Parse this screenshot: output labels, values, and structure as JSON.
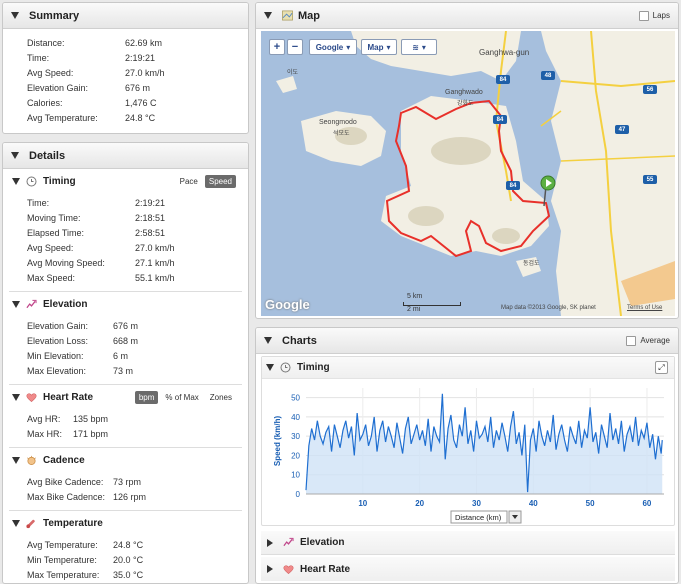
{
  "summary": {
    "title": "Summary",
    "rows": [
      {
        "label": "Distance:",
        "value": "62.69 km"
      },
      {
        "label": "Time:",
        "value": "2:19:21"
      },
      {
        "label": "Avg Speed:",
        "value": "27.0 km/h"
      },
      {
        "label": "Elevation Gain:",
        "value": "676 m"
      },
      {
        "label": "Calories:",
        "value": "1,476 C"
      },
      {
        "label": "Avg Temperature:",
        "value": "24.8 °C"
      }
    ]
  },
  "details": {
    "title": "Details",
    "timing": {
      "title": "Timing",
      "toggle": [
        "Pace",
        "Speed"
      ],
      "rows": [
        {
          "label": "Time:",
          "value": "2:19:21"
        },
        {
          "label": "Moving Time:",
          "value": "2:18:51"
        },
        {
          "label": "Elapsed Time:",
          "value": "2:58:51"
        },
        {
          "label": "Avg Speed:",
          "value": "27.0 km/h"
        },
        {
          "label": "Avg Moving Speed:",
          "value": "27.1 km/h"
        },
        {
          "label": "Max Speed:",
          "value": "55.1 km/h"
        }
      ]
    },
    "elevation": {
      "title": "Elevation",
      "rows": [
        {
          "label": "Elevation Gain:",
          "value": "676 m"
        },
        {
          "label": "Elevation Loss:",
          "value": "668 m"
        },
        {
          "label": "Min Elevation:",
          "value": "6 m"
        },
        {
          "label": "Max Elevation:",
          "value": "73 m"
        }
      ]
    },
    "heart_rate": {
      "title": "Heart Rate",
      "toggle": [
        "bpm",
        "% of Max",
        "Zones"
      ],
      "rows": [
        {
          "label": "Avg HR:",
          "value": "135 bpm"
        },
        {
          "label": "Max HR:",
          "value": "171 bpm"
        }
      ]
    },
    "cadence": {
      "title": "Cadence",
      "rows": [
        {
          "label": "Avg Bike Cadence:",
          "value": "73 rpm"
        },
        {
          "label": "Max Bike Cadence:",
          "value": "126 rpm"
        }
      ]
    },
    "temperature": {
      "title": "Temperature",
      "rows": [
        {
          "label": "Avg Temperature:",
          "value": "24.8 °C"
        },
        {
          "label": "Min Temperature:",
          "value": "20.0 °C"
        },
        {
          "label": "Max Temperature:",
          "value": "35.0 °C"
        }
      ]
    }
  },
  "map": {
    "title": "Map",
    "laps_label": "Laps",
    "zoom_in": "+",
    "zoom_out": "−",
    "type_google": "Google",
    "type_map": "Map",
    "labels": {
      "ganghwa_gun": "Ganghwa-gun",
      "ganghwado": "Ganghwado",
      "seongmodo": "Seongmodo",
      "seongmodo_kr": "석모도",
      "ganghwado_kr": "강화도",
      "dongmakdo_kr": "동검도",
      "imido_kr": "이도"
    },
    "shields": [
      "48",
      "84",
      "84",
      "84",
      "56",
      "47",
      "55"
    ],
    "scale_km": "5 km",
    "scale_mi": "2 mi",
    "attribution": "Map data ©2013 Google, SK planet",
    "terms": "Terms of Use",
    "google_logo": "Google",
    "colors": {
      "route": "#e8302a",
      "water": "#a6bfdd",
      "land": "#f2efe4"
    }
  },
  "charts": {
    "title": "Charts",
    "average_label": "Average",
    "timing_title": "Timing",
    "elevation_title": "Elevation",
    "heart_rate_title": "Heart Rate",
    "x_select": "Distance (km)"
  },
  "chart_data": {
    "type": "area",
    "ylabel": "Speed (km/h)",
    "xlabel": "Distance (km)",
    "ylim": [
      0,
      55
    ],
    "xlim": [
      0,
      63
    ],
    "yticks": [
      0,
      10,
      20,
      30,
      40,
      50
    ],
    "xticks": [
      10,
      20,
      30,
      40,
      50,
      60
    ],
    "grid": true,
    "x": [
      0,
      0.5,
      1,
      1.5,
      2,
      2.5,
      3,
      3.5,
      4,
      4.5,
      5,
      5.5,
      6,
      6.5,
      7,
      7.5,
      8,
      8.5,
      9,
      9.5,
      10,
      10.5,
      11,
      11.5,
      12,
      12.5,
      13,
      13.5,
      14,
      14.5,
      15,
      15.5,
      16,
      16.5,
      17,
      17.5,
      18,
      18.5,
      19,
      19.5,
      20,
      20.5,
      21,
      21.5,
      22,
      22.5,
      23,
      23.5,
      24,
      24.5,
      25,
      25.5,
      26,
      26.5,
      27,
      27.5,
      28,
      28.5,
      29,
      29.5,
      30,
      30.5,
      31,
      31.5,
      32,
      32.5,
      33,
      33.5,
      34,
      34.5,
      35,
      35.5,
      36,
      36.5,
      37,
      37.5,
      38,
      38.5,
      39,
      39.5,
      40,
      40.5,
      41,
      41.5,
      42,
      42.5,
      43,
      43.5,
      44,
      44.5,
      45,
      45.5,
      46,
      46.5,
      47,
      47.5,
      48,
      48.5,
      49,
      49.5,
      50,
      50.5,
      51,
      51.5,
      52,
      52.5,
      53,
      53.5,
      54,
      54.5,
      55,
      55.5,
      56,
      56.5,
      57,
      57.5,
      58,
      58.5,
      59,
      59.5,
      60,
      60.5,
      61,
      61.5,
      62,
      62.5,
      62.69
    ],
    "values": [
      2,
      25,
      34,
      28,
      38,
      30,
      26,
      32,
      35,
      22,
      36,
      30,
      24,
      33,
      38,
      29,
      35,
      20,
      42,
      28,
      31,
      36,
      25,
      30,
      40,
      22,
      33,
      38,
      27,
      35,
      30,
      24,
      37,
      29,
      21,
      34,
      40,
      26,
      31,
      36,
      28,
      33,
      25,
      39,
      22,
      35,
      30,
      27,
      52,
      18,
      34,
      41,
      28,
      24,
      36,
      30,
      45,
      26,
      33,
      22,
      38,
      29,
      31,
      35,
      27,
      40,
      24,
      33,
      28,
      37,
      30,
      22,
      35,
      43,
      26,
      32,
      20,
      36,
      1,
      28,
      34,
      22,
      38,
      30,
      25,
      33,
      27,
      41,
      23,
      31,
      36,
      28,
      22,
      35,
      30,
      26,
      38,
      24,
      33,
      29,
      45,
      27,
      32,
      21,
      36,
      30,
      24,
      42,
      28,
      34,
      26,
      38,
      22,
      31,
      35,
      27,
      40,
      25,
      33,
      29,
      37,
      24,
      31,
      18,
      30,
      21,
      28
    ]
  }
}
